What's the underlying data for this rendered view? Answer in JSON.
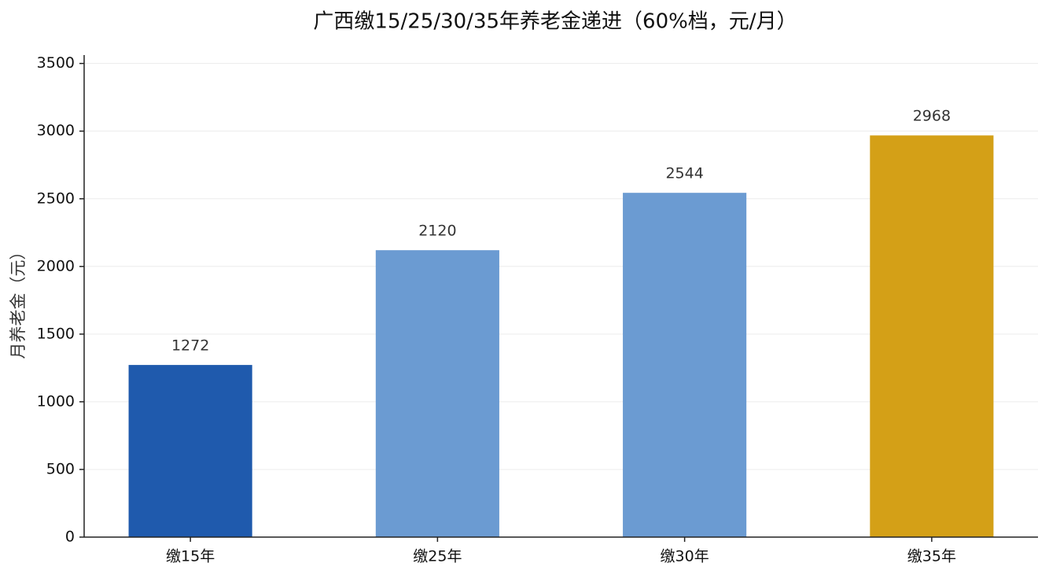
{
  "chart_data": {
    "type": "bar",
    "title": "广西缴15/25/30/35年养老金递进（60%档，元/月）",
    "y_label": "月养老金（元）",
    "categories": [
      "缴15年",
      "缴25年",
      "缴30年",
      "缴35年"
    ],
    "values": [
      1272,
      2120,
      2544,
      2968
    ],
    "colors": [
      "#1f5aad",
      "#6b9bd2",
      "#6b9bd2",
      "#d4a017"
    ],
    "ylim": [
      0,
      3562
    ],
    "yticks": [
      0,
      500,
      1000,
      1500,
      2000,
      2500,
      3000,
      3500
    ],
    "grid": true
  }
}
